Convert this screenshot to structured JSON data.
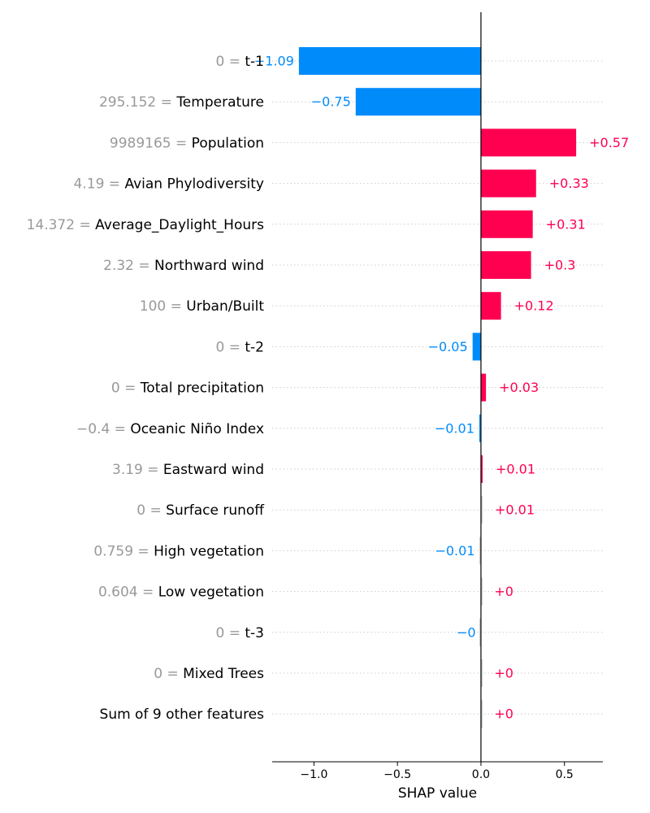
{
  "chart_data": {
    "type": "bar",
    "orientation": "horizontal",
    "xlabel": "SHAP value",
    "xlim": [
      -1.25,
      0.73
    ],
    "xticks": [
      -1.0,
      -0.5,
      0.0,
      0.5
    ],
    "xtick_labels": [
      "−1.0",
      "−0.5",
      "0.0",
      "0.5"
    ],
    "grid": "dotted horizontal row guides",
    "colors": {
      "positive": "#ff0051",
      "negative": "#008bfb",
      "tiny": "#cccccc"
    },
    "rows": [
      {
        "value_label": "0 = ",
        "feature": "t-1",
        "shap": -1.09,
        "text": "−1.09"
      },
      {
        "value_label": "295.152 = ",
        "feature": "Temperature",
        "shap": -0.75,
        "text": "−0.75"
      },
      {
        "value_label": "9989165 = ",
        "feature": "Population",
        "shap": 0.57,
        "text": "+0.57"
      },
      {
        "value_label": "4.19 = ",
        "feature": "Avian Phylodiversity",
        "shap": 0.33,
        "text": "+0.33"
      },
      {
        "value_label": "14.372 = ",
        "feature": "Average_Daylight_Hours",
        "shap": 0.31,
        "text": "+0.31"
      },
      {
        "value_label": "2.32 = ",
        "feature": "Northward wind",
        "shap": 0.3,
        "text": "+0.3"
      },
      {
        "value_label": "100 = ",
        "feature": "Urban/Built",
        "shap": 0.12,
        "text": "+0.12"
      },
      {
        "value_label": "0 = ",
        "feature": "t-2",
        "shap": -0.05,
        "text": "−0.05"
      },
      {
        "value_label": "0 = ",
        "feature": "Total precipitation",
        "shap": 0.03,
        "text": "+0.03"
      },
      {
        "value_label": "−0.4 = ",
        "feature": "Oceanic Niño Index",
        "shap": -0.01,
        "text": "−0.01"
      },
      {
        "value_label": "3.19 = ",
        "feature": "Eastward wind",
        "shap": 0.01,
        "text": "+0.01"
      },
      {
        "value_label": "0 = ",
        "feature": "Surface runoff",
        "shap": 0.005,
        "text": "+0.01"
      },
      {
        "value_label": "0.759 = ",
        "feature": "High vegetation",
        "shap": -0.007,
        "text": "−0.01"
      },
      {
        "value_label": "0.604 = ",
        "feature": "Low vegetation",
        "shap": 0.002,
        "text": "+0"
      },
      {
        "value_label": "0 = ",
        "feature": "t-3",
        "shap": -0.002,
        "text": "−0"
      },
      {
        "value_label": "0 = ",
        "feature": "Mixed Trees",
        "shap": 0.002,
        "text": "+0"
      },
      {
        "value_label": "",
        "feature": "Sum of 9 other features",
        "shap": 0.002,
        "text": "+0"
      }
    ]
  }
}
